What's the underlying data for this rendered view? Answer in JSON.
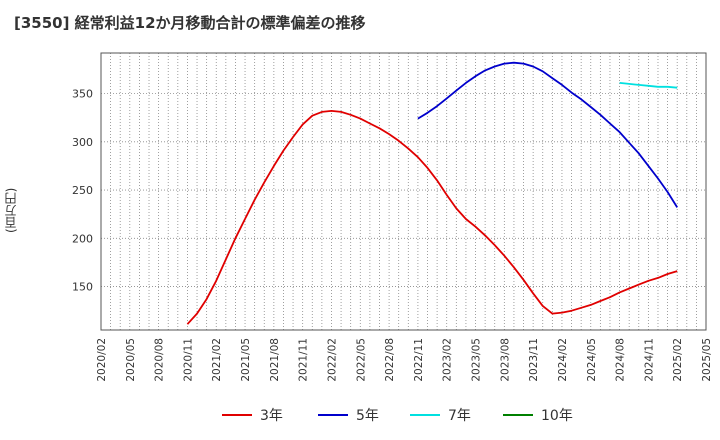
{
  "chart_data": {
    "type": "line",
    "title": "[3550]  経常利益12か月移動合計の標準偏差の推移",
    "ylabel": "(百万円)",
    "ylim": [
      105,
      392
    ],
    "yticks": [
      150,
      200,
      250,
      300,
      350
    ],
    "x_tick_labels": [
      "2020/02",
      "2020/05",
      "2020/08",
      "2020/11",
      "2021/02",
      "2021/05",
      "2021/08",
      "2021/11",
      "2022/02",
      "2022/05",
      "2022/08",
      "2022/11",
      "2023/02",
      "2023/05",
      "2023/08",
      "2023/11",
      "2024/02",
      "2024/05",
      "2024/08",
      "2024/11",
      "2025/02",
      "2025/05"
    ],
    "grid": true,
    "legend_position": "bottom",
    "series": [
      {
        "name": "3年",
        "color": "#e00000",
        "x": [
          "2020/11",
          "2020/12",
          "2021/01",
          "2021/02",
          "2021/03",
          "2021/04",
          "2021/05",
          "2021/06",
          "2021/07",
          "2021/08",
          "2021/09",
          "2021/10",
          "2021/11",
          "2021/12",
          "2022/01",
          "2022/02",
          "2022/03",
          "2022/04",
          "2022/05",
          "2022/06",
          "2022/07",
          "2022/08",
          "2022/09",
          "2022/10",
          "2022/11",
          "2022/12",
          "2023/01",
          "2023/02",
          "2023/03",
          "2023/04",
          "2023/05",
          "2023/06",
          "2023/07",
          "2023/08",
          "2023/09",
          "2023/10",
          "2023/11",
          "2023/12",
          "2024/01",
          "2024/02",
          "2024/03",
          "2024/04",
          "2024/05",
          "2024/06",
          "2024/07",
          "2024/08",
          "2024/09",
          "2024/10",
          "2024/11",
          "2024/12",
          "2025/01",
          "2025/02"
        ],
        "values": [
          111,
          122,
          137,
          156,
          178,
          200,
          220,
          240,
          258,
          275,
          291,
          305,
          318,
          327,
          331,
          332,
          331,
          328,
          324,
          319,
          314,
          308,
          301,
          293,
          284,
          273,
          260,
          245,
          231,
          220,
          212,
          203,
          193,
          182,
          170,
          157,
          143,
          130,
          122,
          123,
          125,
          128,
          131,
          135,
          139,
          144,
          148,
          152,
          156,
          159,
          163,
          166
        ]
      },
      {
        "name": "5年",
        "color": "#0000cc",
        "x": [
          "2022/11",
          "2022/12",
          "2023/01",
          "2023/02",
          "2023/03",
          "2023/04",
          "2023/05",
          "2023/06",
          "2023/07",
          "2023/08",
          "2023/09",
          "2023/10",
          "2023/11",
          "2023/12",
          "2024/01",
          "2024/02",
          "2024/03",
          "2024/04",
          "2024/05",
          "2024/06",
          "2024/07",
          "2024/08",
          "2024/09",
          "2024/10",
          "2024/11",
          "2024/12",
          "2025/01",
          "2025/02"
        ],
        "values": [
          324,
          330,
          337,
          345,
          353,
          361,
          368,
          374,
          378,
          381,
          382,
          381,
          378,
          373,
          366,
          359,
          351,
          344,
          336,
          328,
          319,
          310,
          299,
          288,
          275,
          262,
          248,
          232
        ]
      },
      {
        "name": "7年",
        "color": "#00e0e0",
        "x": [
          "2024/08",
          "2024/09",
          "2024/10",
          "2024/11",
          "2024/12",
          "2025/01",
          "2025/02"
        ],
        "values": [
          361,
          360,
          359,
          358,
          357,
          357,
          356
        ]
      },
      {
        "name": "10年",
        "color": "#008000",
        "x": [],
        "values": []
      }
    ]
  }
}
